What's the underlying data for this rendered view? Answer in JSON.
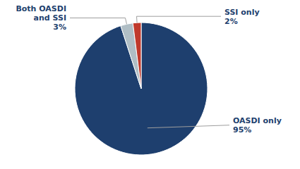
{
  "chart_data": {
    "type": "pie",
    "categories": [
      "OASDI only",
      "Both OASDI\nand SSI",
      "SSI only"
    ],
    "values": [
      95,
      3,
      2
    ],
    "value_labels": [
      "95%",
      "3%",
      "2%"
    ],
    "colors": [
      "#1e3f6e",
      "#b0bec5",
      "#c0392b"
    ],
    "data_labels": true
  }
}
